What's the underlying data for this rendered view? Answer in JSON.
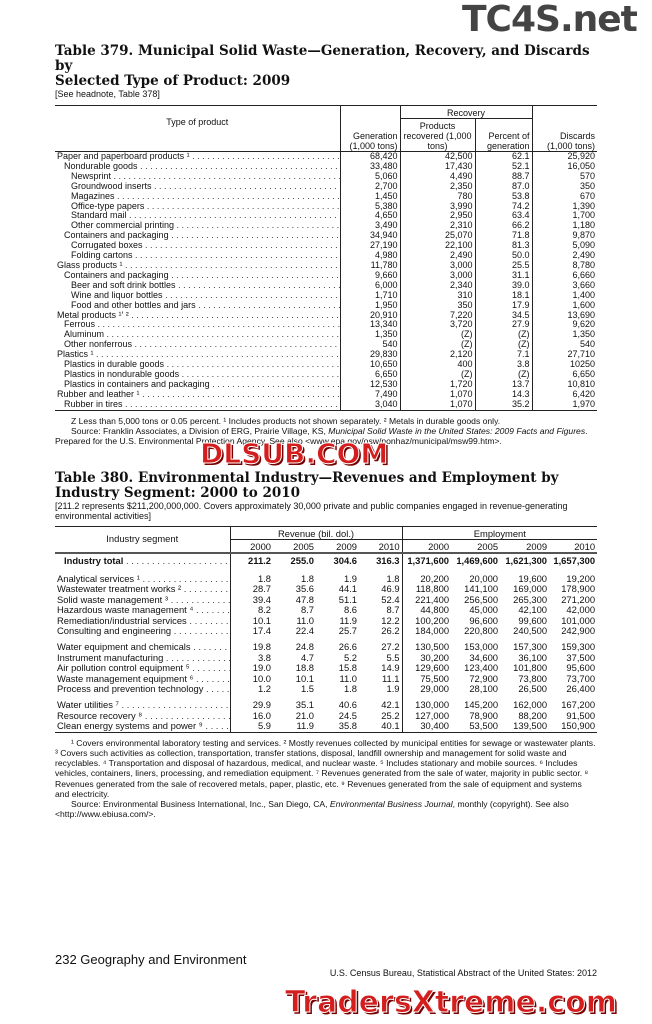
{
  "watermarks": {
    "top": "TC4S.net",
    "middle": "DLSUB.COM",
    "bottom": "TradersXtreme.com"
  },
  "t379": {
    "title1": "Table 379. Municipal Solid Waste—Generation, Recovery, and Discards by",
    "title2": "Selected Type of Product: 2009",
    "headnote": "[See headnote, Table 378]",
    "headers": {
      "type": "Type of product",
      "recovery": "Recovery",
      "generation": "Generation (1,000 tons)",
      "recovered": "Products recovered (1,000 tons)",
      "percent": "Percent of generation",
      "discards": "Discards (1,000 tons)"
    },
    "rows": [
      [
        "Paper and paperboard products ¹",
        0,
        "68,420",
        "42,500",
        "62.1",
        "25,920"
      ],
      [
        "Nondurable goods",
        1,
        "33,480",
        "17,430",
        "52.1",
        "16,050"
      ],
      [
        "Newsprint",
        2,
        "5,060",
        "4,490",
        "88.7",
        "570"
      ],
      [
        "Groundwood inserts",
        2,
        "2,700",
        "2,350",
        "87.0",
        "350"
      ],
      [
        "Magazines",
        2,
        "1,450",
        "780",
        "53.8",
        "670"
      ],
      [
        "Office-type papers",
        2,
        "5,380",
        "3,990",
        "74.2",
        "1,390"
      ],
      [
        "Standard mail",
        2,
        "4,650",
        "2,950",
        "63.4",
        "1,700"
      ],
      [
        "Other commercial printing",
        2,
        "3,490",
        "2,310",
        "66.2",
        "1,180"
      ],
      [
        "Containers and packaging",
        1,
        "34,940",
        "25,070",
        "71.8",
        "9,870"
      ],
      [
        "Corrugated boxes",
        2,
        "27,190",
        "22,100",
        "81.3",
        "5,090"
      ],
      [
        "Folding cartons",
        2,
        "4,980",
        "2,490",
        "50.0",
        "2,490"
      ],
      [
        "Glass products ¹",
        0,
        "11,780",
        "3,000",
        "25.5",
        "8,780"
      ],
      [
        "Containers and packaging",
        1,
        "9,660",
        "3,000",
        "31.1",
        "6,660"
      ],
      [
        "Beer and soft drink bottles",
        2,
        "6,000",
        "2,340",
        "39.0",
        "3,660"
      ],
      [
        "Wine and liquor bottles",
        2,
        "1,710",
        "310",
        "18.1",
        "1,400"
      ],
      [
        "Food and other bottles and jars",
        2,
        "1,950",
        "350",
        "17.9",
        "1,600"
      ],
      [
        "Metal products ¹′ ²",
        0,
        "20,910",
        "7,220",
        "34.5",
        "13,690"
      ],
      [
        "Ferrous",
        1,
        "13,340",
        "3,720",
        "27.9",
        "9,620"
      ],
      [
        "Aluminum",
        1,
        "1,350",
        "(Z)",
        "(Z)",
        "1,350"
      ],
      [
        "Other nonferrous",
        1,
        "540",
        "(Z)",
        "(Z)",
        "540"
      ],
      [
        "Plastics ¹",
        0,
        "29,830",
        "2,120",
        "7.1",
        "27,710"
      ],
      [
        "Plastics in durable goods",
        1,
        "10,650",
        "400",
        "3.8",
        "10250"
      ],
      [
        "Plastics in nondurable goods",
        1,
        "6,650",
        "(Z)",
        "(Z)",
        "6,650"
      ],
      [
        "Plastics in containers and packaging",
        1,
        "12,530",
        "1,720",
        "13.7",
        "10,810"
      ],
      [
        "Rubber and leather ¹",
        0,
        "7,490",
        "1,070",
        "14.3",
        "6,420"
      ],
      [
        "Rubber in tires",
        1,
        "3,040",
        "1,070",
        "35.2",
        "1,970"
      ]
    ],
    "footnote": "Z Less than 5,000 tons or 0.05 percent. ¹ Includes products not shown separately. ² Metals in durable goods only.",
    "source_a": "Source: Franklin Associates, a Division of ERG, Prairie Village, KS, ",
    "source_italic": "Municipal Solid Waste in the United States: 2009 Facts and Figures",
    "source_b": ". Prepared for the U.S. Environmental Protection Agency. See also <www.epa.gov/osw/nonhaz/municipal/msw99.htm>."
  },
  "t380": {
    "title1": "Table 380. Environmental Industry—Revenues and Employment by",
    "title2": "Industry Segment: 2000 to 2010",
    "headnote": "[211.2 represents $211,200,000,000. Covers approximately 30,000 private and public companies engaged in revenue-generating environmental activities]",
    "headers": {
      "segment": "Industry segment",
      "revenue": "Revenue (bil. dol.)",
      "employment": "Employment",
      "years": [
        "2000",
        "2005",
        "2009",
        "2010",
        "2000",
        "2005",
        "2009",
        "2010"
      ]
    },
    "total": [
      "Industry total",
      "211.2",
      "255.0",
      "304.6",
      "316.3",
      "1,371,600",
      "1,469,600",
      "1,621,300",
      "1,657,300"
    ],
    "groups": [
      [
        [
          "Analytical services ¹",
          "1.8",
          "1.8",
          "1.9",
          "1.8",
          "20,200",
          "20,000",
          "19,600",
          "19,200"
        ],
        [
          "Wastewater treatment works ²",
          "28.7",
          "35.6",
          "44.1",
          "46.9",
          "118,800",
          "141,100",
          "169,000",
          "178,900"
        ],
        [
          "Solid waste management ³",
          "39.4",
          "47.8",
          "51.1",
          "52.4",
          "221,400",
          "256,500",
          "265,300",
          "271,200"
        ],
        [
          "Hazardous waste management ⁴",
          "8.2",
          "8.7",
          "8.6",
          "8.7",
          "44,800",
          "45,000",
          "42,100",
          "42,000"
        ],
        [
          "Remediation/industrial services",
          "10.1",
          "11.0",
          "11.9",
          "12.2",
          "100,200",
          "96,600",
          "99,600",
          "101,000"
        ],
        [
          "Consulting and engineering",
          "17.4",
          "22.4",
          "25.7",
          "26.2",
          "184,000",
          "220,800",
          "240,500",
          "242,900"
        ]
      ],
      [
        [
          "Water equipment and chemicals",
          "19.8",
          "24.8",
          "26.6",
          "27.2",
          "130,500",
          "153,000",
          "157,300",
          "159,300"
        ],
        [
          "Instrument manufacturing",
          "3.8",
          "4.7",
          "5.2",
          "5.5",
          "30,200",
          "34,600",
          "36,100",
          "37,500"
        ],
        [
          "Air pollution control equipment ⁵",
          "19.0",
          "18.8",
          "15.8",
          "14.9",
          "129,600",
          "123,400",
          "101,800",
          "95,600"
        ],
        [
          "Waste management equipment ⁶",
          "10.0",
          "10.1",
          "11.0",
          "11.1",
          "75,500",
          "72,900",
          "73,800",
          "73,700"
        ],
        [
          "Process and prevention technology",
          "1.2",
          "1.5",
          "1.8",
          "1.9",
          "29,000",
          "28,100",
          "26,500",
          "26,400"
        ]
      ],
      [
        [
          "Water utilities ⁷",
          "29.9",
          "35.1",
          "40.6",
          "42.1",
          "130,000",
          "145,200",
          "162,000",
          "167,200"
        ],
        [
          "Resource recovery ⁸",
          "16.0",
          "21.0",
          "24.5",
          "25.2",
          "127,000",
          "78,900",
          "88,200",
          "91,500"
        ],
        [
          "Clean energy systems and power ⁹",
          "5.9",
          "11.9",
          "35.8",
          "40.1",
          "30,400",
          "53,500",
          "139,500",
          "150,900"
        ]
      ]
    ],
    "footnotes": "¹ Covers environmental laboratory testing and services. ² Mostly revenues collected by municipal entities for sewage or wastewater plants. ³ Covers such activities as collection, transportation, transfer  stations, disposal, landfill ownership and management for solid waste and recyclables. ⁴ Transportation and disposal of hazardous, medical, and nuclear waste. ⁵ Includes stationary and mobile sources. ⁶ Includes vehicles, containers, liners, processing, and remediation equipment. ⁷ Revenues generated from the sale of water, majority in public sector. ⁸ Revenues generated from the sale of recovered metals, paper, plastic, etc. ⁹ Revenues generated from the sale of equipment and systems and electricity.",
    "source_a": "Source: Environmental Business International, Inc., San Diego, CA, ",
    "source_italic": "Environmental Business Journal",
    "source_b": ", monthly (copyright). See also <http://www.ebiusa.com/>."
  },
  "footer": {
    "page": "232  Geography and Environment",
    "publication": "U.S. Census Bureau, Statistical Abstract of the United States: 2012"
  }
}
